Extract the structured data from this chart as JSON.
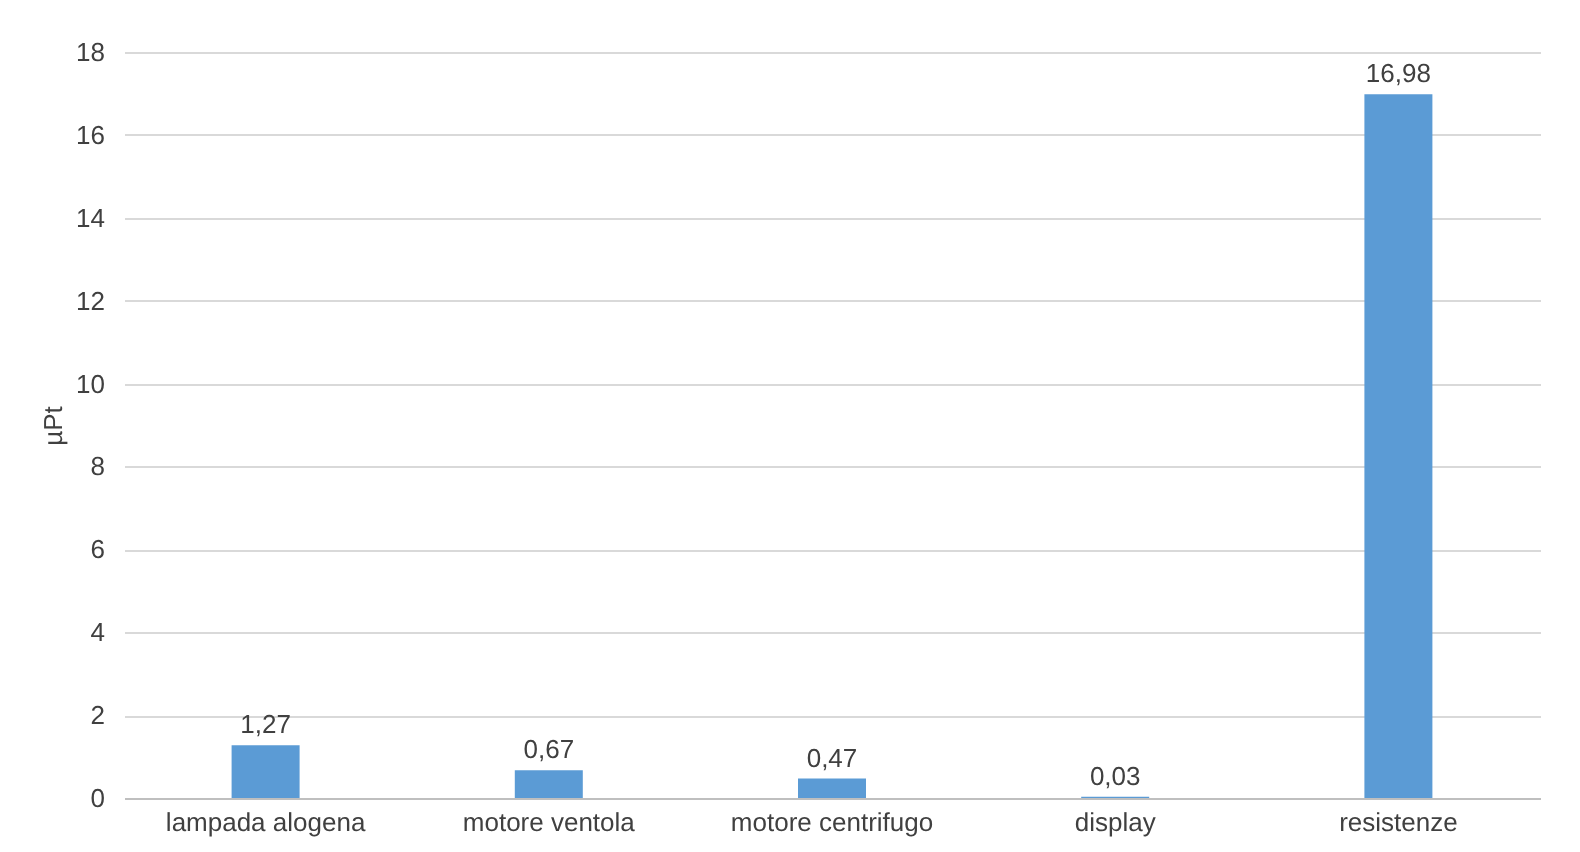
{
  "chart_data": {
    "type": "bar",
    "ylabel": "µPt",
    "categories": [
      "lampada alogena",
      "motore ventola",
      "motore centrifugo",
      "display",
      "resistenze"
    ],
    "values": [
      1.27,
      0.67,
      0.47,
      0.03,
      16.98
    ],
    "value_labels": [
      "1,27",
      "0,67",
      "0,47",
      "0,03",
      "16,98"
    ],
    "color": "#5b9bd5",
    "ylim": [
      0,
      18
    ],
    "yticks": [
      0,
      2,
      4,
      6,
      8,
      10,
      12,
      14,
      16,
      18
    ],
    "grid": "y"
  }
}
